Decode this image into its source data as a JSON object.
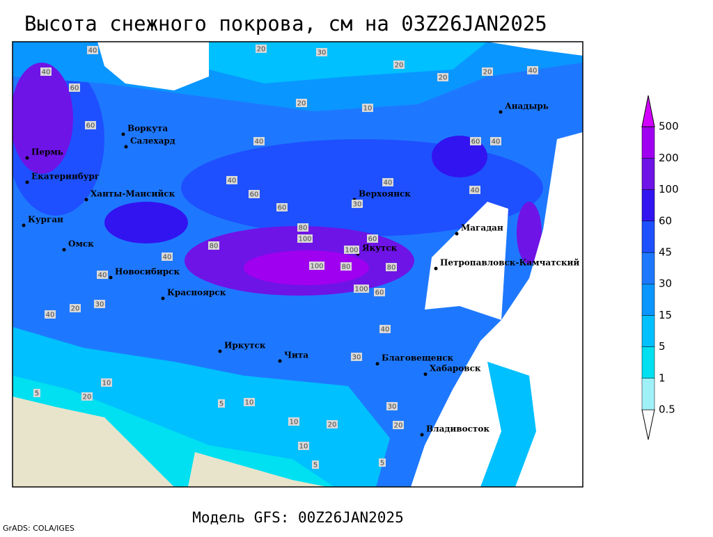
{
  "title": "Высота снежного покрова, см на 03Z26JAN2025",
  "subtitle": "Модель GFS: 00Z26JAN2025",
  "credit": "GrADS: COLA/IGES",
  "map": {
    "cities": [
      "Воркута",
      "Салехард",
      "Пермь",
      "Екатеринбург",
      "Ханты-Мансийск",
      "Курган",
      "Омск",
      "Новосибирск",
      "Красноярск",
      "Иркутск",
      "Чита",
      "Верхоянск",
      "Якутск",
      "Анадырь",
      "Магадан",
      "Петропавловск-Камчатский",
      "Благовещенск",
      "Хабаровск",
      "Владивосток"
    ],
    "contour_labels": [
      "40",
      "20",
      "30",
      "20",
      "20",
      "20",
      "40",
      "40",
      "60",
      "20",
      "10",
      "60",
      "40",
      "60",
      "40",
      "40",
      "60",
      "40",
      "30",
      "60",
      "40",
      "80",
      "100",
      "60",
      "80",
      "100",
      "80",
      "100",
      "80",
      "100",
      "60",
      "40",
      "40",
      "40",
      "30",
      "20",
      "40",
      "30",
      "10",
      "20",
      "5",
      "5",
      "10",
      "10",
      "20",
      "10",
      "5",
      "5",
      "20",
      "30"
    ]
  },
  "legend": {
    "levels": [
      0.5,
      1,
      5,
      15,
      30,
      45,
      60,
      100,
      200,
      500
    ],
    "colors": [
      "#ffffff",
      "#a0f0f8",
      "#00e0f0",
      "#00c0ff",
      "#0a96ff",
      "#1e78ff",
      "#1e50ff",
      "#3214f0",
      "#6e14e6",
      "#a000f0",
      "#d200ff"
    ]
  }
}
